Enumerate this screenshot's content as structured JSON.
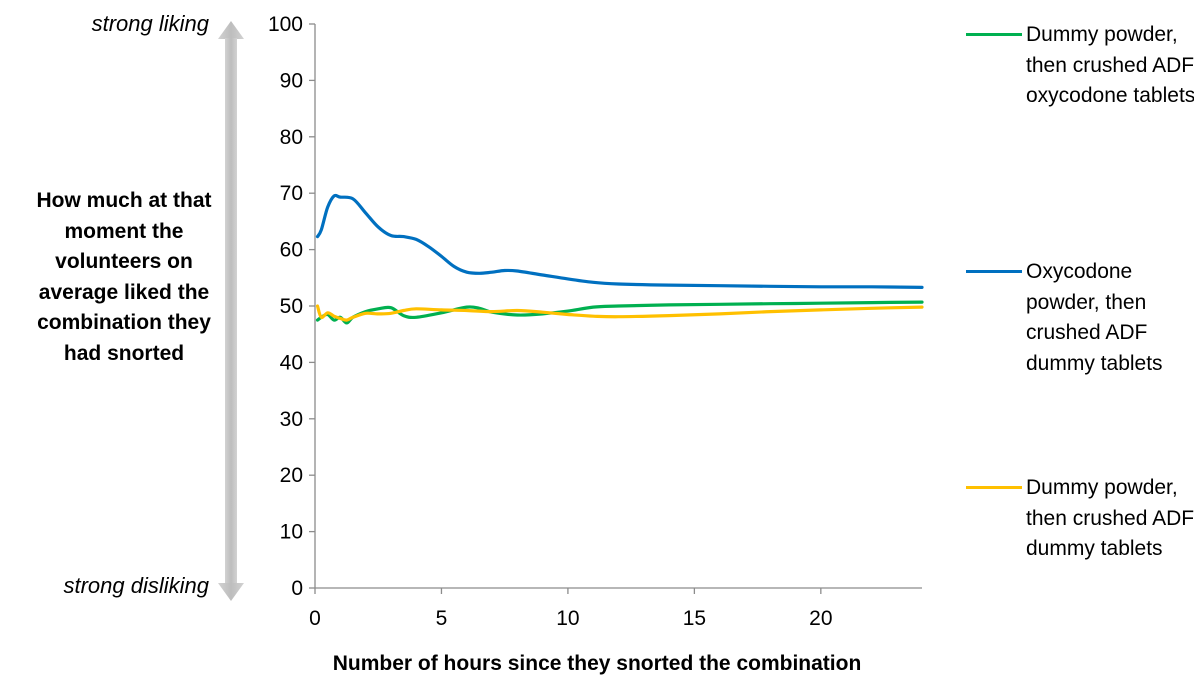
{
  "chart_data": {
    "type": "line",
    "title": "",
    "xlabel": "Number of hours since they snorted the combination",
    "ylabel": "How much at that moment the volunteers on average liked the combination they had snorted",
    "y_top_annotation": "strong liking",
    "y_bottom_annotation": "strong disliking",
    "xlim": [
      0,
      24
    ],
    "ylim": [
      0,
      100
    ],
    "x_ticks": [
      0,
      5,
      10,
      15,
      20
    ],
    "y_ticks": [
      0,
      10,
      20,
      30,
      40,
      50,
      60,
      70,
      80,
      90,
      100
    ],
    "grid": false,
    "legend_position": "right",
    "series": [
      {
        "name": "Dummy powder, then crushed ADF oxycodone tablets",
        "color": "#00b050",
        "x": [
          0.1,
          0.25,
          0.5,
          0.75,
          1.0,
          1.25,
          1.5,
          2.0,
          2.5,
          3.0,
          3.5,
          4.0,
          5.0,
          6.0,
          6.5,
          7.0,
          8.0,
          9.0,
          10.0,
          11.0,
          12.0,
          14.0,
          16.0,
          18.0,
          20.0,
          22.0,
          24.0
        ],
        "y": [
          47.5,
          48.0,
          48.5,
          47.5,
          48.0,
          47.0,
          48.0,
          49.0,
          49.5,
          49.7,
          48.3,
          48.0,
          48.8,
          49.8,
          49.6,
          48.9,
          48.4,
          48.6,
          49.1,
          49.8,
          50.0,
          50.2,
          50.3,
          50.4,
          50.5,
          50.6,
          50.7
        ]
      },
      {
        "name": "Oxycodone powder, then crushed ADF dummy tablets",
        "color": "#0070c0",
        "x": [
          0.1,
          0.25,
          0.5,
          0.75,
          1.0,
          1.5,
          2.0,
          2.5,
          3.0,
          3.5,
          4.0,
          4.5,
          5.0,
          5.5,
          6.0,
          6.5,
          7.0,
          7.5,
          8.0,
          9.0,
          10.0,
          11.0,
          12.0,
          14.0,
          16.0,
          18.0,
          20.0,
          22.0,
          24.0
        ],
        "y": [
          62.3,
          63.5,
          67.5,
          69.5,
          69.3,
          69.0,
          66.5,
          64.0,
          62.5,
          62.3,
          61.8,
          60.5,
          58.8,
          57.0,
          56.0,
          55.8,
          56.0,
          56.3,
          56.2,
          55.5,
          54.8,
          54.2,
          53.9,
          53.7,
          53.6,
          53.5,
          53.4,
          53.4,
          53.3
        ]
      },
      {
        "name": "Dummy powder, then crushed ADF dummy tablets",
        "color": "#ffc000",
        "x": [
          0.1,
          0.25,
          0.5,
          0.75,
          1.0,
          1.25,
          1.5,
          2.0,
          2.5,
          3.0,
          3.5,
          4.0,
          5.0,
          6.0,
          7.0,
          8.0,
          9.0,
          10.0,
          11.0,
          12.0,
          14.0,
          16.0,
          18.0,
          20.0,
          22.0,
          24.0
        ],
        "y": [
          50.0,
          48.0,
          48.8,
          48.2,
          47.8,
          47.5,
          48.0,
          48.7,
          48.6,
          48.7,
          49.2,
          49.5,
          49.3,
          49.2,
          49.0,
          49.2,
          48.9,
          48.5,
          48.2,
          48.1,
          48.3,
          48.6,
          49.0,
          49.3,
          49.6,
          49.8
        ]
      }
    ]
  }
}
